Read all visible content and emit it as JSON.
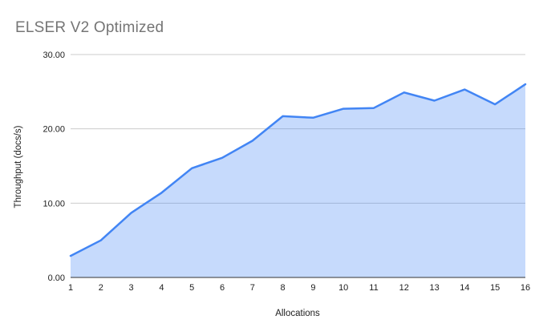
{
  "chart_data": {
    "type": "area",
    "title": "ELSER V2 Optimized",
    "xlabel": "Allocations",
    "ylabel": "Throughput (docs/s)",
    "x": [
      1,
      2,
      3,
      4,
      5,
      6,
      7,
      8,
      9,
      10,
      11,
      12,
      13,
      14,
      15,
      16
    ],
    "xtick_labels": [
      "1",
      "2",
      "3",
      "4",
      "5",
      "6",
      "7",
      "8",
      "9",
      "10",
      "11",
      "12",
      "13",
      "14",
      "15",
      "16"
    ],
    "values": [
      2.9,
      5.0,
      8.7,
      11.4,
      14.7,
      16.1,
      18.4,
      21.7,
      21.5,
      22.7,
      22.8,
      24.9,
      23.8,
      25.3,
      23.3,
      26.0
    ],
    "ylim": [
      0,
      30
    ],
    "yticks": [
      0,
      10,
      20,
      30
    ],
    "ytick_labels": [
      "0.00",
      "10.00",
      "20.00",
      "30.00"
    ],
    "grid": true,
    "legend": "none",
    "colors": {
      "line": "#4285f4",
      "fill": "rgba(66,133,244,0.30)",
      "gridline": "#cccccc",
      "axis_line": "#333333",
      "tick_text": "#212121",
      "title_text": "#757575",
      "background": "#ffffff"
    }
  }
}
